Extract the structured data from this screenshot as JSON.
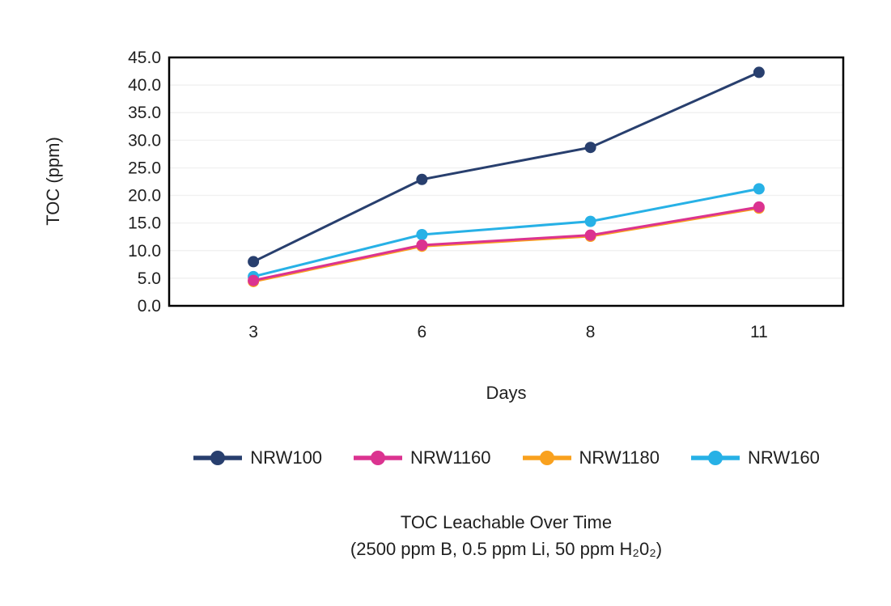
{
  "chart_data": {
    "type": "line",
    "title": "TOC Leachable Over Time",
    "subtitle": "(2500 ppm B, 0.5 ppm Li, 50 ppm H₂0₂)",
    "xlabel": "Days",
    "ylabel": "TOC (ppm)",
    "categories": [
      "3",
      "6",
      "8",
      "11"
    ],
    "series": [
      {
        "name": "NRW100",
        "color": "#283F6E",
        "values": [
          8.0,
          22.9,
          28.7,
          42.3
        ]
      },
      {
        "name": "NRW1160",
        "color": "#DB3390",
        "values": [
          4.6,
          11.0,
          12.8,
          17.9
        ]
      },
      {
        "name": "NRW1180",
        "color": "#F9A11E",
        "values": [
          4.4,
          10.8,
          12.6,
          17.7
        ]
      },
      {
        "name": "NRW160",
        "color": "#27B1E6",
        "values": [
          5.3,
          12.9,
          15.3,
          21.2
        ]
      }
    ],
    "ylim": [
      0,
      45
    ],
    "yticks": [
      "0.0",
      "5.0",
      "10.0",
      "15.0",
      "20.0",
      "25.0",
      "30.0",
      "35.0",
      "40.0",
      "45.0"
    ],
    "grid": true,
    "legend_position": "bottom",
    "colors": {
      "text": "#1f1f1f",
      "grid": "#f1f1f1",
      "border": "#000000",
      "background": "#ffffff"
    }
  }
}
